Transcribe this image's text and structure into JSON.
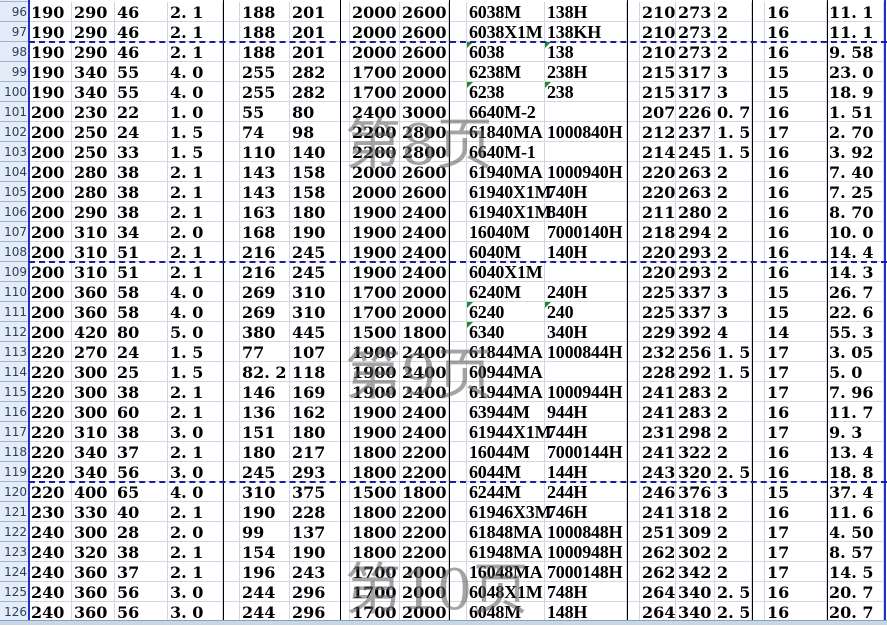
{
  "sheet": {
    "watermarks": [
      "第8页",
      "第9页",
      "第10页"
    ],
    "page_breaks_after_rows": [
      97,
      108,
      119
    ],
    "colors": {
      "page_break": "#1c1ca8",
      "row_header_bg": "#e4ecf7",
      "text_number_flag": "#1e8a2c"
    },
    "rows": [
      {
        "num": "96",
        "cells": [
          "190",
          "290",
          "46",
          "2. 1",
          "188",
          "201",
          "2000",
          "2600",
          "6038M",
          "138H",
          "210",
          "273",
          "2",
          "16",
          "11. 1"
        ]
      },
      {
        "num": "97",
        "cells": [
          "190",
          "290",
          "46",
          "2. 1",
          "188",
          "201",
          "2000",
          "2600",
          "6038X1M",
          "138KH",
          "210",
          "273",
          "2",
          "16",
          "11. 1"
        ]
      },
      {
        "num": "98",
        "cells": [
          "190",
          "290",
          "46",
          "2. 1",
          "188",
          "201",
          "2000",
          "2600",
          "6038",
          "138",
          "210",
          "273",
          "2",
          "16",
          "9. 58"
        ],
        "flags": [
          8,
          9
        ]
      },
      {
        "num": "99",
        "cells": [
          "190",
          "340",
          "55",
          "4. 0",
          "255",
          "282",
          "1700",
          "2000",
          "6238M",
          "238H",
          "215",
          "317",
          "3",
          "15",
          "23. 0"
        ]
      },
      {
        "num": "100",
        "cells": [
          "190",
          "340",
          "55",
          "4. 0",
          "255",
          "282",
          "1700",
          "2000",
          "6238",
          "238",
          "215",
          "317",
          "3",
          "15",
          "18. 9"
        ],
        "flags": [
          8,
          9
        ]
      },
      {
        "num": "101",
        "cells": [
          "200",
          "230",
          "22",
          "1. 0",
          "55",
          "80",
          "2400",
          "3000",
          "6640M-2",
          "",
          "207",
          "226",
          "0. 7",
          "16",
          "1. 51"
        ]
      },
      {
        "num": "102",
        "cells": [
          "200",
          "250",
          "24",
          "1. 5",
          "74",
          "98",
          "2200",
          "2800",
          "61840MA",
          "1000840H",
          "212",
          "237",
          "1. 5",
          "17",
          "2. 70"
        ]
      },
      {
        "num": "103",
        "cells": [
          "200",
          "250",
          "33",
          "1. 5",
          "110",
          "140",
          "2200",
          "2800",
          "6640M-1",
          "",
          "214",
          "245",
          "1. 5",
          "16",
          "3. 92"
        ]
      },
      {
        "num": "104",
        "cells": [
          "200",
          "280",
          "38",
          "2. 1",
          "143",
          "158",
          "2000",
          "2600",
          "61940MA",
          "1000940H",
          "220",
          "263",
          "2",
          "16",
          "7. 40"
        ]
      },
      {
        "num": "105",
        "cells": [
          "200",
          "280",
          "38",
          "2. 1",
          "143",
          "158",
          "2000",
          "2600",
          "61940X1M",
          "740H",
          "220",
          "263",
          "2",
          "16",
          "7. 25"
        ]
      },
      {
        "num": "106",
        "cells": [
          "200",
          "290",
          "38",
          "2. 1",
          "163",
          "180",
          "1900",
          "2400",
          "61940X1M",
          "840H",
          "211",
          "280",
          "2",
          "16",
          "8. 70"
        ]
      },
      {
        "num": "107",
        "cells": [
          "200",
          "310",
          "34",
          "2. 0",
          "168",
          "190",
          "1900",
          "2400",
          "16040M",
          "7000140H",
          "218",
          "294",
          "2",
          "16",
          "10. 0"
        ]
      },
      {
        "num": "108",
        "cells": [
          "200",
          "310",
          "51",
          "2. 1",
          "216",
          "245",
          "1900",
          "2400",
          "6040M",
          "140H",
          "220",
          "293",
          "2",
          "16",
          "14. 4"
        ]
      },
      {
        "num": "109",
        "cells": [
          "200",
          "310",
          "51",
          "2. 1",
          "216",
          "245",
          "1900",
          "2400",
          "6040X1M",
          "",
          "220",
          "293",
          "2",
          "16",
          "14. 3"
        ]
      },
      {
        "num": "110",
        "cells": [
          "200",
          "360",
          "58",
          "4. 0",
          "269",
          "310",
          "1700",
          "2000",
          "6240M",
          "240H",
          "225",
          "337",
          "3",
          "15",
          "26. 7"
        ]
      },
      {
        "num": "111",
        "cells": [
          "200",
          "360",
          "58",
          "4. 0",
          "269",
          "310",
          "1700",
          "2000",
          "6240",
          "240",
          "225",
          "337",
          "3",
          "15",
          "22. 6"
        ],
        "flags": [
          8,
          9
        ]
      },
      {
        "num": "112",
        "cells": [
          "200",
          "420",
          "80",
          "5. 0",
          "380",
          "445",
          "1500",
          "1800",
          "6340",
          "340H",
          "229",
          "392",
          "4",
          "14",
          "55. 3"
        ],
        "flags": [
          8
        ]
      },
      {
        "num": "113",
        "cells": [
          "220",
          "270",
          "24",
          "1. 5",
          "77",
          "107",
          "1900",
          "2400",
          "61844MA",
          "1000844H",
          "232",
          "256",
          "1. 5",
          "17",
          "3. 05"
        ]
      },
      {
        "num": "114",
        "cells": [
          "220",
          "300",
          "25",
          "1. 5",
          "82. 2",
          "118",
          "1900",
          "2400",
          "60944MA",
          "",
          "228",
          "292",
          "1. 5",
          "17",
          "5. 0"
        ]
      },
      {
        "num": "115",
        "cells": [
          "220",
          "300",
          "38",
          "2. 1",
          "146",
          "169",
          "1900",
          "2400",
          "61944MA",
          "1000944H",
          "241",
          "283",
          "2",
          "17",
          "7. 96"
        ]
      },
      {
        "num": "116",
        "cells": [
          "220",
          "300",
          "60",
          "2. 1",
          "136",
          "162",
          "1900",
          "2400",
          "63944M",
          "944H",
          "241",
          "283",
          "2",
          "16",
          "11. 7"
        ]
      },
      {
        "num": "117",
        "cells": [
          "220",
          "310",
          "38",
          "3. 0",
          "151",
          "180",
          "1900",
          "2400",
          "61944X1M",
          "744H",
          "231",
          "298",
          "2",
          "17",
          "9. 3"
        ]
      },
      {
        "num": "118",
        "cells": [
          "220",
          "340",
          "37",
          "2. 1",
          "180",
          "217",
          "1800",
          "2200",
          "16044M",
          "7000144H",
          "241",
          "322",
          "2",
          "16",
          "13. 4"
        ]
      },
      {
        "num": "119",
        "cells": [
          "220",
          "340",
          "56",
          "3. 0",
          "245",
          "293",
          "1800",
          "2200",
          "6044M",
          "144H",
          "243",
          "320",
          "2. 5",
          "16",
          "18. 8"
        ]
      },
      {
        "num": "120",
        "cells": [
          "220",
          "400",
          "65",
          "4. 0",
          "310",
          "375",
          "1500",
          "1800",
          "6244M",
          "244H",
          "246",
          "376",
          "3",
          "15",
          "37. 4"
        ]
      },
      {
        "num": "121",
        "cells": [
          "230",
          "330",
          "40",
          "2. 1",
          "190",
          "228",
          "1800",
          "2200",
          "61946X3M",
          "746H",
          "241",
          "318",
          "2",
          "16",
          "11. 6"
        ]
      },
      {
        "num": "122",
        "cells": [
          "240",
          "300",
          "28",
          "2. 0",
          "99",
          "137",
          "1800",
          "2200",
          "61848MA",
          "1000848H",
          "251",
          "309",
          "2",
          "17",
          "4. 50"
        ]
      },
      {
        "num": "123",
        "cells": [
          "240",
          "320",
          "38",
          "2. 1",
          "154",
          "190",
          "1800",
          "2200",
          "61948MA",
          "1000948H",
          "262",
          "302",
          "2",
          "17",
          "8. 57"
        ]
      },
      {
        "num": "124",
        "cells": [
          "240",
          "360",
          "37",
          "2. 1",
          "196",
          "243",
          "1700",
          "2000",
          "16048MA",
          "7000148H",
          "262",
          "342",
          "2",
          "17",
          "14. 5"
        ]
      },
      {
        "num": "125",
        "cells": [
          "240",
          "360",
          "56",
          "3. 0",
          "244",
          "296",
          "1700",
          "2000",
          "6048X1M",
          "748H",
          "264",
          "340",
          "2. 5",
          "16",
          "20. 7"
        ]
      },
      {
        "num": "126",
        "cells": [
          "240",
          "360",
          "56",
          "3. 0",
          "244",
          "296",
          "1700",
          "2000",
          "6048M",
          "148H",
          "264",
          "340",
          "2. 5",
          "16",
          "20. 7"
        ]
      }
    ]
  }
}
